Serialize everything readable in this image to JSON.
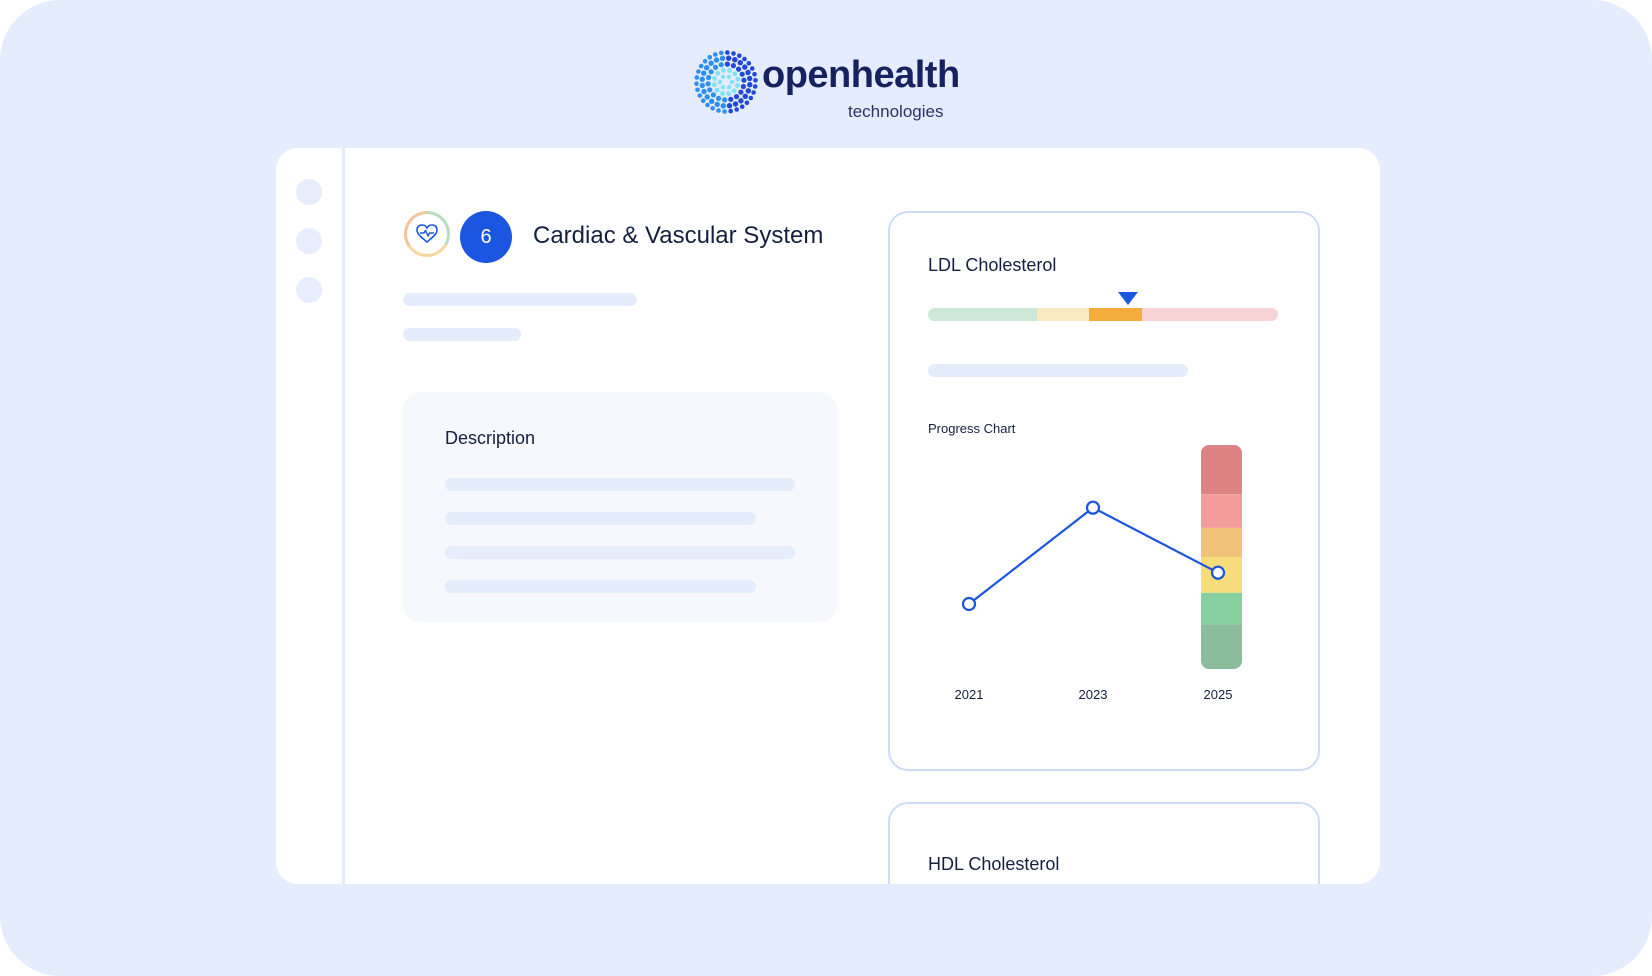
{
  "brand": {
    "name": "openhealth",
    "subtitle": "technologies"
  },
  "sidebar": {
    "items": [
      {
        "icon": "placeholder-dot"
      },
      {
        "icon": "placeholder-dot"
      },
      {
        "icon": "placeholder-dot"
      }
    ]
  },
  "system": {
    "icon": "heart-pulse-icon",
    "count": "6",
    "title": "Cardiac & Vascular System"
  },
  "description": {
    "title": "Description"
  },
  "ldl": {
    "title": "LDL Cholesterol",
    "range_segments": [
      {
        "color": "#cde8d7",
        "share": 0.31
      },
      {
        "color": "#f8e9c3",
        "share": 0.15
      },
      {
        "color": "#f2ad3c",
        "share": 0.15
      },
      {
        "color": "#f8d3d5",
        "share": 0.39
      }
    ],
    "marker_segment": 2,
    "chart_title": "Progress Chart"
  },
  "hdl": {
    "title": "HDL Cholesterol"
  },
  "colors": {
    "background": "#e5ecfd",
    "accent": "#1a56e0",
    "text": "#15203f"
  },
  "chart_data": {
    "type": "line",
    "title": "Progress Chart",
    "x": [
      "2021",
      "2023",
      "2025"
    ],
    "series": [
      {
        "values": [
          0.29,
          0.72,
          0.43
        ]
      }
    ],
    "ylim": [
      0,
      1
    ],
    "y_tick_labels": [],
    "grid": false,
    "risk_scale": [
      {
        "color": "#dd8383",
        "from": 0.78,
        "to": 1.0
      },
      {
        "color": "#f29c9c",
        "from": 0.63,
        "to": 0.78
      },
      {
        "color": "#f2c17a",
        "from": 0.5,
        "to": 0.63
      },
      {
        "color": "#f6dc7b",
        "from": 0.34,
        "to": 0.5
      },
      {
        "color": "#86cf9f",
        "from": 0.2,
        "to": 0.34
      },
      {
        "color": "#8bbd9c",
        "from": 0.0,
        "to": 0.2
      }
    ]
  }
}
